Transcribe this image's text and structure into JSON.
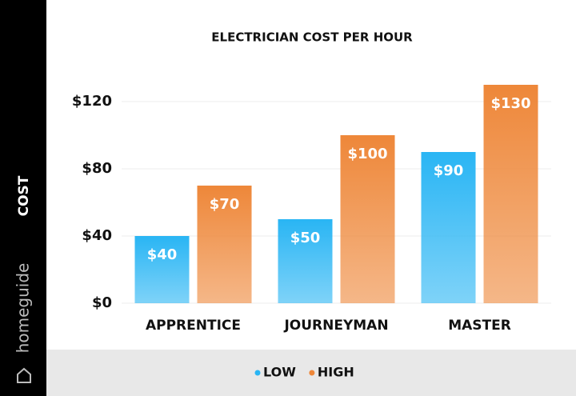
{
  "chart_data": {
    "type": "bar",
    "title": "ELECTRICIAN COST PER HOUR",
    "y_label": "COST",
    "watermark": "homeguide",
    "categories": [
      "APPRENTICE",
      "JOURNEYMAN",
      "MASTER"
    ],
    "series": [
      {
        "name": "LOW",
        "color": "#29b5f4",
        "values": [
          40,
          50,
          90
        ],
        "value_labels": [
          "$40",
          "$50",
          "$90"
        ]
      },
      {
        "name": "HIGH",
        "color": "#ee8739",
        "values": [
          70,
          100,
          130
        ],
        "value_labels": [
          "$70",
          "$100",
          "$130"
        ]
      }
    ],
    "ylim": [
      0,
      140
    ],
    "yticks": [
      {
        "value": 0,
        "label": "$0"
      },
      {
        "value": 40,
        "label": "$40"
      },
      {
        "value": 80,
        "label": "$80"
      },
      {
        "value": 120,
        "label": "$120"
      }
    ],
    "grid": true
  }
}
